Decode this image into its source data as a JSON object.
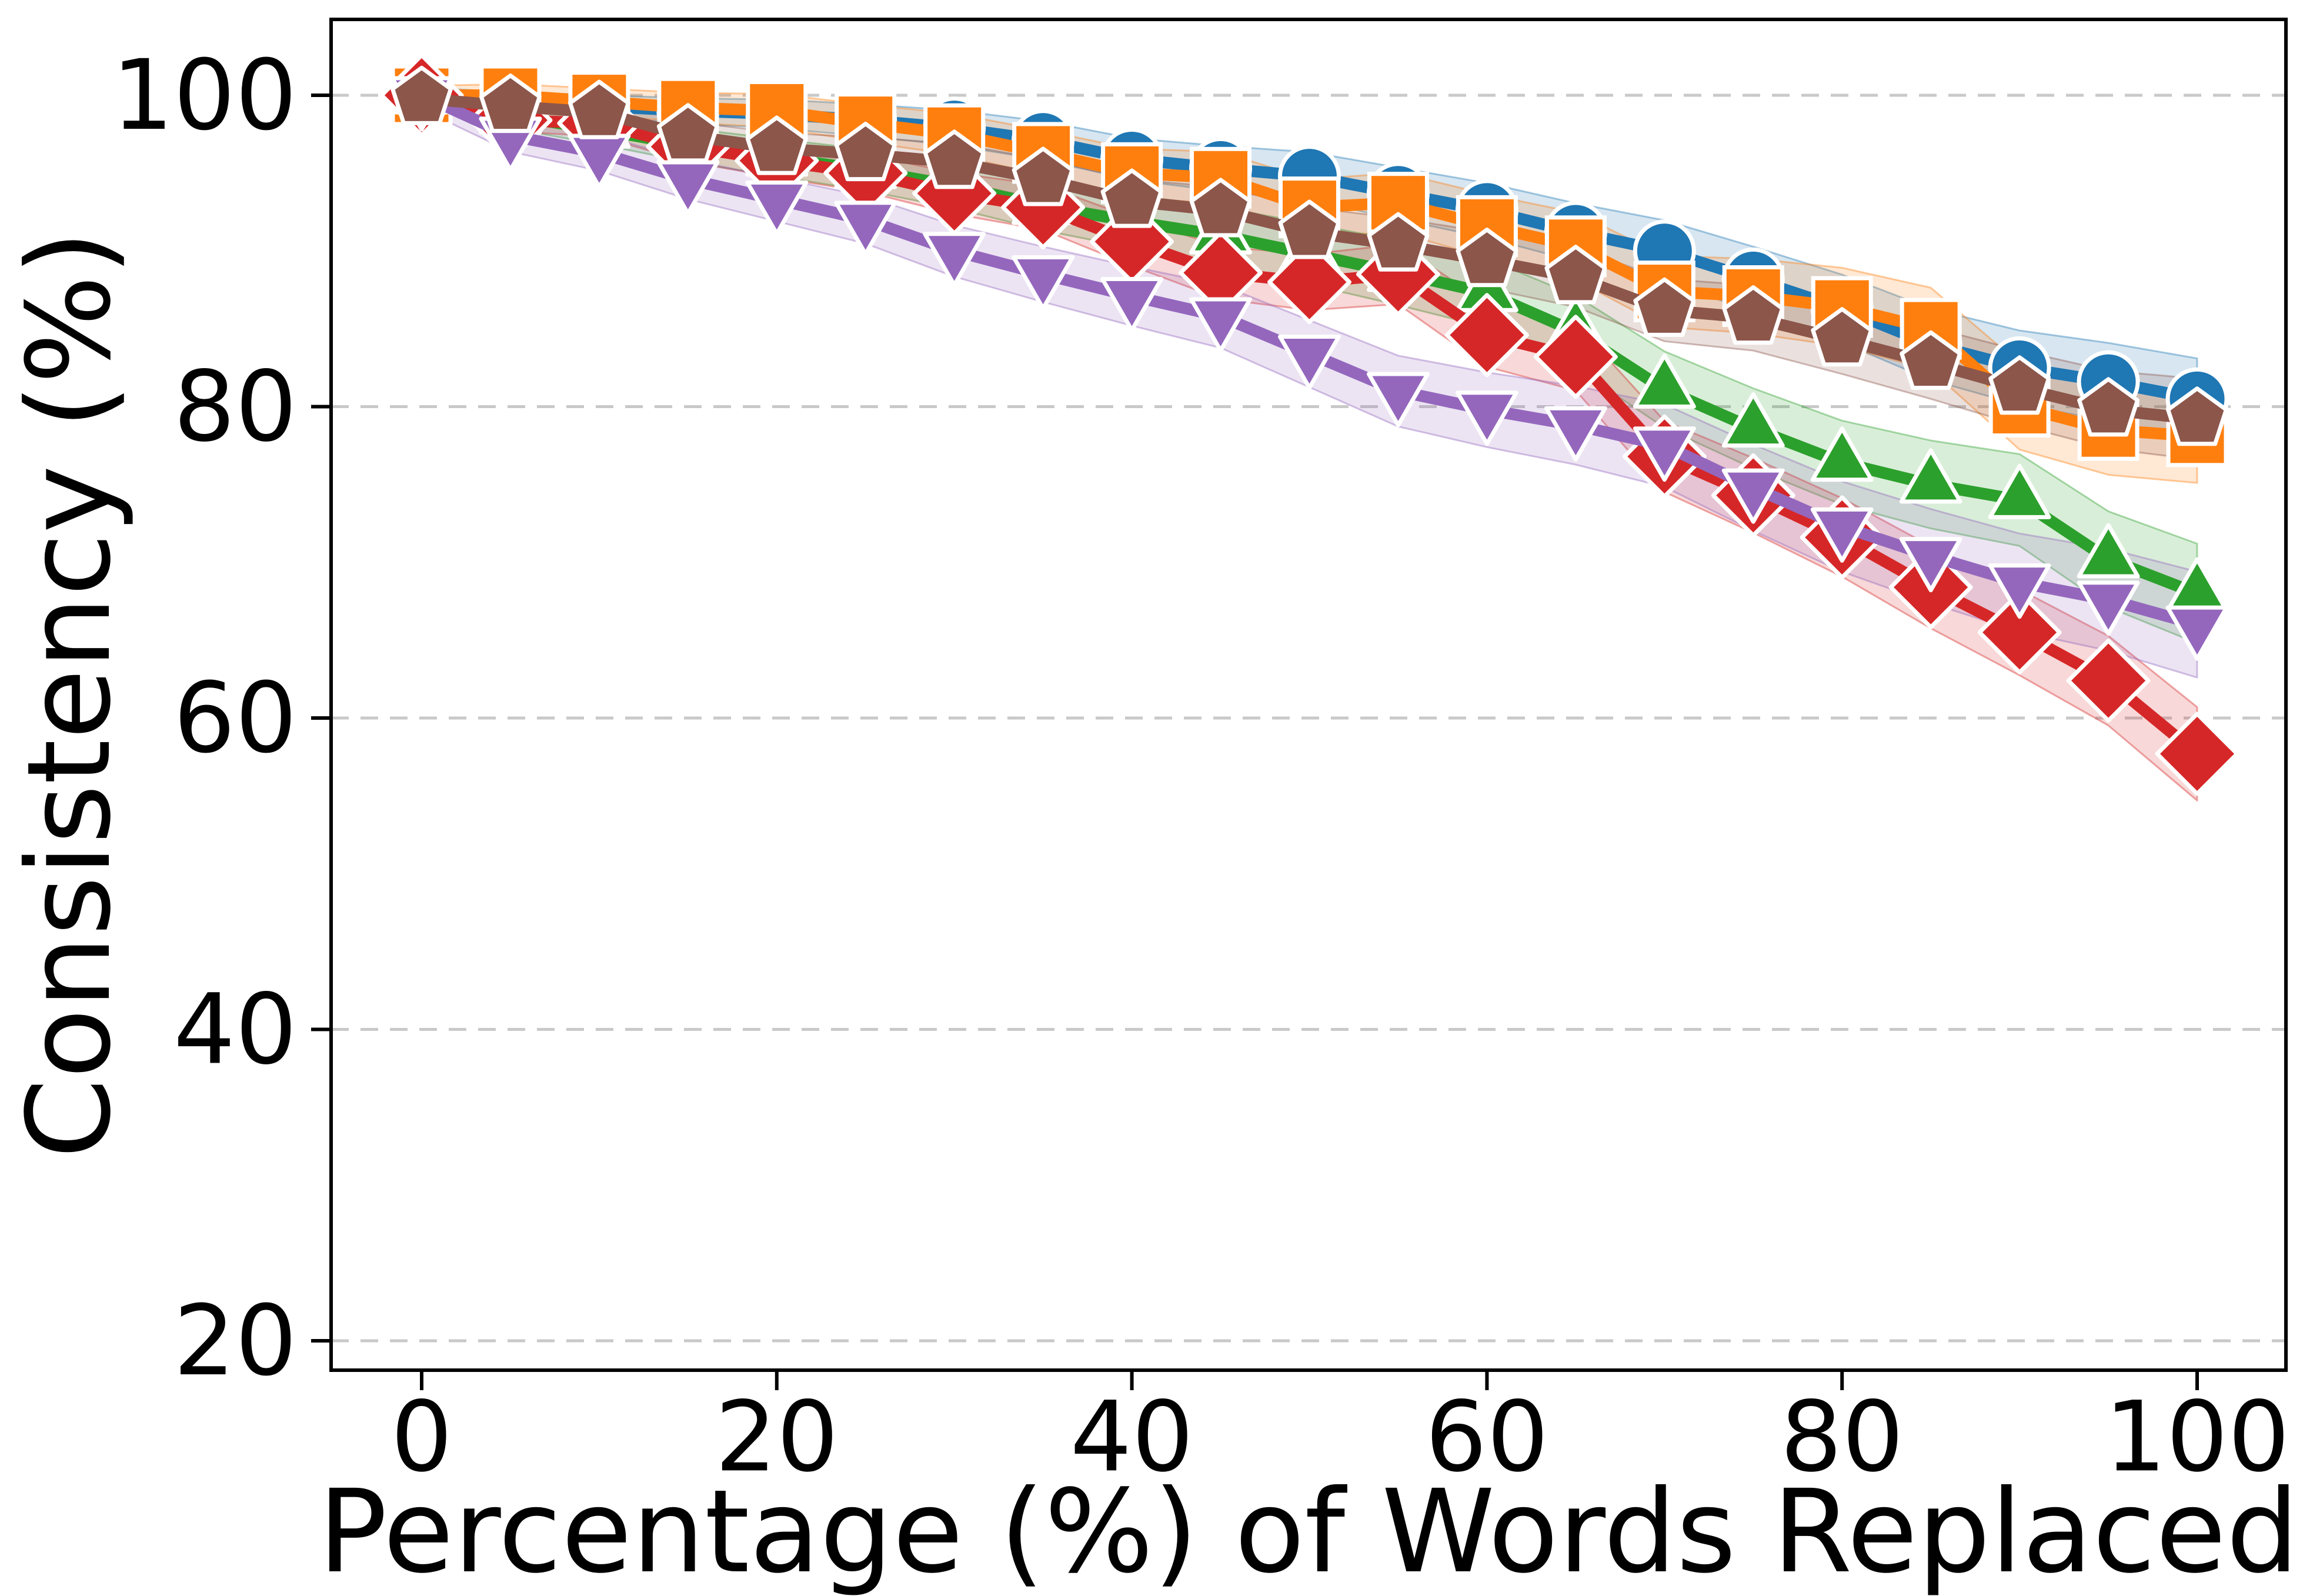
{
  "figure": {
    "background": "#ffffff",
    "plot_border_color": "#000000",
    "grid_color": "#c9c9c9"
  },
  "chart_data": {
    "type": "line",
    "title": "",
    "xlabel": "Percentage (%) of Words Replaced",
    "ylabel": "Consistency (%)",
    "x": [
      0,
      5,
      10,
      15,
      20,
      25,
      30,
      35,
      40,
      45,
      50,
      55,
      60,
      65,
      70,
      75,
      80,
      85,
      90,
      95,
      100
    ],
    "xlim": [
      -5,
      105
    ],
    "ylim": [
      17.5,
      105
    ],
    "xtick_values": [
      0,
      20,
      40,
      60,
      80,
      100
    ],
    "xtick_labels": [
      "0",
      "20",
      "40",
      "60",
      "80",
      "100"
    ],
    "ytick_values": [
      100,
      80,
      60,
      40,
      20
    ],
    "ytick_labels": [
      "100",
      "80",
      "60",
      "40",
      "20"
    ],
    "grid": "horizontal-dashed",
    "legend_position": "none",
    "series": [
      {
        "id": "series-blue-circle",
        "marker": "circle",
        "color": "#1f77b4",
        "values": [
          100,
          99.6,
          99.3,
          99.0,
          98.8,
          98.4,
          97.9,
          97.1,
          95.9,
          95.3,
          94.8,
          93.7,
          92.6,
          91.2,
          90.0,
          88.2,
          86.3,
          84.0,
          82.5,
          81.6,
          80.5
        ],
        "band_halfwidth_start": 0.5,
        "band_halfwidth_end": 2.6
      },
      {
        "id": "series-orange-square",
        "marker": "square",
        "color": "#ff7f0e",
        "values": [
          100,
          100.0,
          99.6,
          99.2,
          99.0,
          98.2,
          97.5,
          96.3,
          95.0,
          94.7,
          92.8,
          93.1,
          91.6,
          90.3,
          87.4,
          87.1,
          86.4,
          85.0,
          80.0,
          78.5,
          78.1
        ],
        "band_halfwidth_start": 0.6,
        "band_halfwidth_end": 3.0
      },
      {
        "id": "series-green-triangle-up",
        "marker": "triangle-up",
        "color": "#2ca02c",
        "values": [
          100,
          98.7,
          97.8,
          96.8,
          96.0,
          95.2,
          94.2,
          92.9,
          91.9,
          91.0,
          89.8,
          88.6,
          87.3,
          84.8,
          81.1,
          78.6,
          76.4,
          75.0,
          74.0,
          70.2,
          68.0
        ],
        "band_halfwidth_start": 0.7,
        "band_halfwidth_end": 3.2
      },
      {
        "id": "series-red-diamond",
        "marker": "diamond",
        "color": "#d62728",
        "values": [
          100,
          98.4,
          98.2,
          96.7,
          95.8,
          95.0,
          93.7,
          92.8,
          90.6,
          88.6,
          88.0,
          88.5,
          84.6,
          83.2,
          76.8,
          74.3,
          71.6,
          68.4,
          65.5,
          62.4,
          57.7
        ],
        "band_halfwidth_start": 0.6,
        "band_halfwidth_end": 3.0
      },
      {
        "id": "series-purple-triangle-down",
        "marker": "triangle-down",
        "color": "#9467bd",
        "values": [
          100,
          97.4,
          96.3,
          94.6,
          93.3,
          92.0,
          90.0,
          88.5,
          87.1,
          85.8,
          83.4,
          81.0,
          79.8,
          78.8,
          77.5,
          74.8,
          72.3,
          70.4,
          68.7,
          67.6,
          66.0
        ],
        "band_halfwidth_start": 0.9,
        "band_halfwidth_end": 3.4
      },
      {
        "id": "series-brown-pentagon",
        "marker": "pentagon",
        "color": "#8c564b",
        "values": [
          99.8,
          99.3,
          98.9,
          97.4,
          96.6,
          96.2,
          95.7,
          94.6,
          93.2,
          92.6,
          91.2,
          90.4,
          89.4,
          88.3,
          86.2,
          85.7,
          84.3,
          82.8,
          81.2,
          79.8,
          79.2
        ],
        "band_halfwidth_start": 0.6,
        "band_halfwidth_end": 2.6
      }
    ]
  }
}
